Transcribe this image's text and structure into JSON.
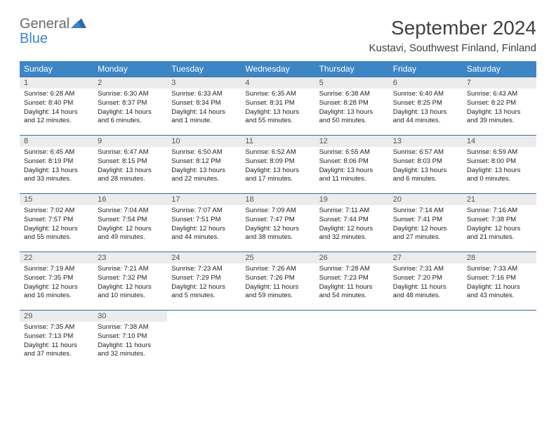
{
  "brand": {
    "part1": "General",
    "part2": "Blue"
  },
  "title": "September 2024",
  "location": "Kustavi, Southwest Finland, Finland",
  "colors": {
    "header_bg": "#3d86c6",
    "header_text": "#ffffff",
    "daynum_bg": "#ececec",
    "daynum_text": "#555555",
    "border": "#3d6a9a",
    "body_text": "#222222",
    "title_text": "#404040",
    "logo_gray": "#6a6a6a",
    "logo_blue": "#3d86c6"
  },
  "weekdays": [
    "Sunday",
    "Monday",
    "Tuesday",
    "Wednesday",
    "Thursday",
    "Friday",
    "Saturday"
  ],
  "weeks": [
    [
      {
        "n": "1",
        "sunrise": "6:28 AM",
        "sunset": "8:40 PM",
        "daylight": "14 hours and 12 minutes."
      },
      {
        "n": "2",
        "sunrise": "6:30 AM",
        "sunset": "8:37 PM",
        "daylight": "14 hours and 6 minutes."
      },
      {
        "n": "3",
        "sunrise": "6:33 AM",
        "sunset": "8:34 PM",
        "daylight": "14 hours and 1 minute."
      },
      {
        "n": "4",
        "sunrise": "6:35 AM",
        "sunset": "8:31 PM",
        "daylight": "13 hours and 55 minutes."
      },
      {
        "n": "5",
        "sunrise": "6:38 AM",
        "sunset": "8:28 PM",
        "daylight": "13 hours and 50 minutes."
      },
      {
        "n": "6",
        "sunrise": "6:40 AM",
        "sunset": "8:25 PM",
        "daylight": "13 hours and 44 minutes."
      },
      {
        "n": "7",
        "sunrise": "6:43 AM",
        "sunset": "8:22 PM",
        "daylight": "13 hours and 39 minutes."
      }
    ],
    [
      {
        "n": "8",
        "sunrise": "6:45 AM",
        "sunset": "8:19 PM",
        "daylight": "13 hours and 33 minutes."
      },
      {
        "n": "9",
        "sunrise": "6:47 AM",
        "sunset": "8:15 PM",
        "daylight": "13 hours and 28 minutes."
      },
      {
        "n": "10",
        "sunrise": "6:50 AM",
        "sunset": "8:12 PM",
        "daylight": "13 hours and 22 minutes."
      },
      {
        "n": "11",
        "sunrise": "6:52 AM",
        "sunset": "8:09 PM",
        "daylight": "13 hours and 17 minutes."
      },
      {
        "n": "12",
        "sunrise": "6:55 AM",
        "sunset": "8:06 PM",
        "daylight": "13 hours and 11 minutes."
      },
      {
        "n": "13",
        "sunrise": "6:57 AM",
        "sunset": "8:03 PM",
        "daylight": "13 hours and 6 minutes."
      },
      {
        "n": "14",
        "sunrise": "6:59 AM",
        "sunset": "8:00 PM",
        "daylight": "13 hours and 0 minutes."
      }
    ],
    [
      {
        "n": "15",
        "sunrise": "7:02 AM",
        "sunset": "7:57 PM",
        "daylight": "12 hours and 55 minutes."
      },
      {
        "n": "16",
        "sunrise": "7:04 AM",
        "sunset": "7:54 PM",
        "daylight": "12 hours and 49 minutes."
      },
      {
        "n": "17",
        "sunrise": "7:07 AM",
        "sunset": "7:51 PM",
        "daylight": "12 hours and 44 minutes."
      },
      {
        "n": "18",
        "sunrise": "7:09 AM",
        "sunset": "7:47 PM",
        "daylight": "12 hours and 38 minutes."
      },
      {
        "n": "19",
        "sunrise": "7:11 AM",
        "sunset": "7:44 PM",
        "daylight": "12 hours and 32 minutes."
      },
      {
        "n": "20",
        "sunrise": "7:14 AM",
        "sunset": "7:41 PM",
        "daylight": "12 hours and 27 minutes."
      },
      {
        "n": "21",
        "sunrise": "7:16 AM",
        "sunset": "7:38 PM",
        "daylight": "12 hours and 21 minutes."
      }
    ],
    [
      {
        "n": "22",
        "sunrise": "7:19 AM",
        "sunset": "7:35 PM",
        "daylight": "12 hours and 16 minutes."
      },
      {
        "n": "23",
        "sunrise": "7:21 AM",
        "sunset": "7:32 PM",
        "daylight": "12 hours and 10 minutes."
      },
      {
        "n": "24",
        "sunrise": "7:23 AM",
        "sunset": "7:29 PM",
        "daylight": "12 hours and 5 minutes."
      },
      {
        "n": "25",
        "sunrise": "7:26 AM",
        "sunset": "7:26 PM",
        "daylight": "11 hours and 59 minutes."
      },
      {
        "n": "26",
        "sunrise": "7:28 AM",
        "sunset": "7:23 PM",
        "daylight": "11 hours and 54 minutes."
      },
      {
        "n": "27",
        "sunrise": "7:31 AM",
        "sunset": "7:20 PM",
        "daylight": "11 hours and 48 minutes."
      },
      {
        "n": "28",
        "sunrise": "7:33 AM",
        "sunset": "7:16 PM",
        "daylight": "11 hours and 43 minutes."
      }
    ],
    [
      {
        "n": "29",
        "sunrise": "7:35 AM",
        "sunset": "7:13 PM",
        "daylight": "11 hours and 37 minutes."
      },
      {
        "n": "30",
        "sunrise": "7:38 AM",
        "sunset": "7:10 PM",
        "daylight": "11 hours and 32 minutes."
      },
      null,
      null,
      null,
      null,
      null
    ]
  ],
  "labels": {
    "sunrise_prefix": "Sunrise: ",
    "sunset_prefix": "Sunset: ",
    "daylight_prefix": "Daylight: "
  }
}
